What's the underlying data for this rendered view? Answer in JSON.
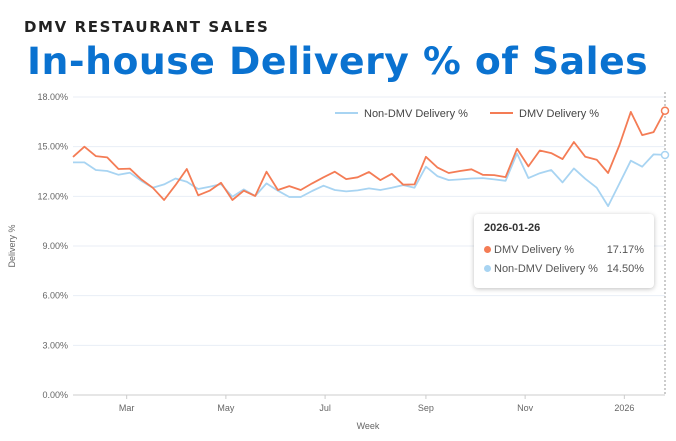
{
  "header": {
    "kicker": "DMV RESTAURANT SALES",
    "title": "In-house Delivery % of Sales"
  },
  "chart_data": {
    "type": "line",
    "xlabel": "Week",
    "ylabel": "Delivery %",
    "ylim": [
      0,
      18
    ],
    "yticks": [
      "0.00%",
      "3.00%",
      "6.00%",
      "9.00%",
      "12.00%",
      "15.00%",
      "18.00%"
    ],
    "ytick_values": [
      0,
      3,
      6,
      9,
      12,
      15,
      18
    ],
    "xticks": [
      {
        "label": "Mar",
        "date": "2025-03-01"
      },
      {
        "label": "May",
        "date": "2025-05-01"
      },
      {
        "label": "Jul",
        "date": "2025-07-01"
      },
      {
        "label": "Sep",
        "date": "2025-09-01"
      },
      {
        "label": "Nov",
        "date": "2025-11-01"
      },
      {
        "label": "2026",
        "date": "2026-01-01"
      }
    ],
    "grid": true,
    "legend_placement": "top-right",
    "x": [
      "2025-01-27",
      "2025-02-03",
      "2025-02-10",
      "2025-02-17",
      "2025-02-24",
      "2025-03-03",
      "2025-03-10",
      "2025-03-17",
      "2025-03-24",
      "2025-03-31",
      "2025-04-07",
      "2025-04-14",
      "2025-04-21",
      "2025-04-28",
      "2025-05-05",
      "2025-05-12",
      "2025-05-19",
      "2025-05-26",
      "2025-06-02",
      "2025-06-09",
      "2025-06-16",
      "2025-06-23",
      "2025-06-30",
      "2025-07-07",
      "2025-07-14",
      "2025-07-21",
      "2025-07-28",
      "2025-08-04",
      "2025-08-11",
      "2025-08-18",
      "2025-08-25",
      "2025-09-01",
      "2025-09-08",
      "2025-09-15",
      "2025-09-22",
      "2025-09-29",
      "2025-10-06",
      "2025-10-13",
      "2025-10-20",
      "2025-10-27",
      "2025-11-03",
      "2025-11-10",
      "2025-11-17",
      "2025-11-24",
      "2025-12-01",
      "2025-12-08",
      "2025-12-15",
      "2025-12-22",
      "2025-12-29",
      "2026-01-05",
      "2026-01-12",
      "2026-01-19",
      "2026-01-26"
    ],
    "series": [
      {
        "name": "Non-DMV Delivery %",
        "color": "#a8d4f2",
        "values": [
          14.05,
          14.05,
          13.59,
          13.53,
          13.3,
          13.43,
          12.94,
          12.52,
          12.72,
          13.08,
          12.88,
          12.44,
          12.58,
          12.74,
          11.98,
          12.42,
          12.02,
          12.78,
          12.34,
          11.96,
          11.96,
          12.32,
          12.64,
          12.38,
          12.3,
          12.36,
          12.48,
          12.38,
          12.52,
          12.68,
          12.52,
          13.79,
          13.22,
          12.98,
          13.02,
          13.08,
          13.1,
          13.02,
          12.94,
          14.59,
          13.1,
          13.4,
          13.59,
          12.84,
          13.69,
          13.06,
          12.52,
          11.41,
          12.78,
          14.15,
          13.79,
          14.53,
          14.5
        ]
      },
      {
        "name": "DMV Delivery %",
        "color": "#f47c55",
        "values": [
          14.38,
          15.0,
          14.43,
          14.35,
          13.65,
          13.67,
          13.02,
          12.52,
          11.78,
          12.68,
          13.65,
          12.06,
          12.34,
          12.82,
          11.78,
          12.34,
          12.02,
          13.49,
          12.38,
          12.62,
          12.38,
          12.78,
          13.15,
          13.49,
          13.04,
          13.15,
          13.47,
          12.98,
          13.36,
          12.7,
          12.72,
          14.39,
          13.75,
          13.41,
          13.53,
          13.63,
          13.3,
          13.28,
          13.16,
          14.87,
          13.81,
          14.77,
          14.61,
          14.25,
          15.28,
          14.39,
          14.21,
          13.41,
          15.1,
          17.1,
          15.7,
          15.88,
          17.17
        ]
      }
    ],
    "legend": [
      "Non-DMV Delivery %",
      "DMV Delivery %"
    ],
    "tooltip": {
      "date": "2026-01-26",
      "rows": [
        {
          "name": "DMV Delivery %",
          "value": "17.17%",
          "color": "#f47c55"
        },
        {
          "name": "Non-DMV Delivery %",
          "value": "14.50%",
          "color": "#a8d4f2"
        }
      ]
    }
  }
}
